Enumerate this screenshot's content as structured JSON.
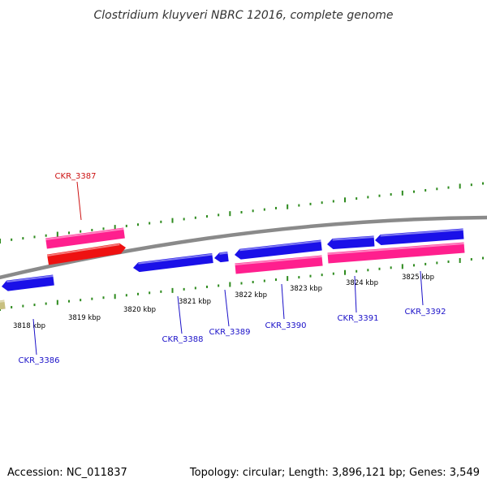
{
  "title": "Clostridium kluyveri NBRC 12016, complete genome",
  "accession": "Accession: NC_011837",
  "summary": "Topology: circular; Length: 3,896,121 bp; Genes: 3,549",
  "colors": {
    "backbone": "#8a8a8a",
    "tick": "#2e8b1e",
    "gene_forward": "#ff1f8e",
    "gene_reverse": "#1a10e8",
    "gene_highlight": "#ee1111",
    "label_blue": "#1a10c8",
    "label_red": "#cc1111",
    "partial_feature": "#c8c080"
  },
  "scale_labels": [
    "3818 kbp",
    "3819 kbp",
    "3820 kbp",
    "3821 kbp",
    "3822 kbp",
    "3823 kbp",
    "3824 kbp",
    "3825 kbp"
  ],
  "genes": [
    {
      "name": "CKR_3386",
      "strand": "reverse",
      "color": "blue"
    },
    {
      "name": "CKR_3387",
      "strand": "forward",
      "color": "red"
    },
    {
      "name": "CKR_3388",
      "strand": "reverse",
      "color": "blue"
    },
    {
      "name": "CKR_3389",
      "strand": "reverse",
      "color": "blue"
    },
    {
      "name": "CKR_3390",
      "strand": "reverse",
      "color": "blue"
    },
    {
      "name": "CKR_3391",
      "strand": "reverse",
      "color": "blue"
    },
    {
      "name": "CKR_3392",
      "strand": "reverse",
      "color": "blue"
    }
  ]
}
